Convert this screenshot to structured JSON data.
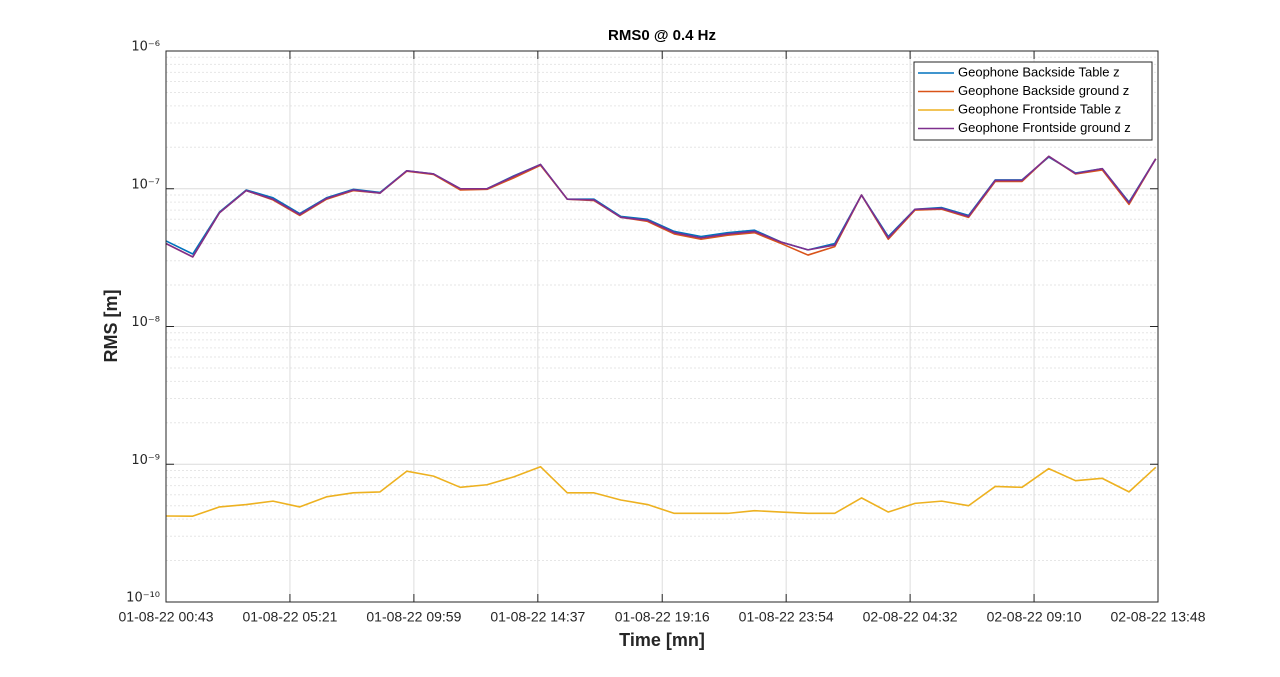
{
  "chart_data": {
    "type": "line",
    "title": "RMS0 @ 0.4 Hz",
    "x_label": "Time [mn]",
    "y_label": "RMS [m]",
    "log_y": true,
    "grid": true,
    "minor_grid": true,
    "legend_position": "top-right",
    "x": [
      "01-08-22 00:43",
      "01-08-22 01:43",
      "01-08-22 02:43",
      "01-08-22 03:43",
      "01-08-22 04:43",
      "01-08-22 05:43",
      "01-08-22 06:43",
      "01-08-22 07:43",
      "01-08-22 08:43",
      "01-08-22 09:43",
      "01-08-22 10:43",
      "01-08-22 11:43",
      "01-08-22 12:43",
      "01-08-22 13:43",
      "01-08-22 14:43",
      "01-08-22 15:43",
      "01-08-22 16:43",
      "01-08-22 17:43",
      "01-08-22 18:43",
      "01-08-22 19:43",
      "01-08-22 20:43",
      "01-08-22 21:43",
      "01-08-22 22:43",
      "01-08-22 23:43",
      "02-08-22 00:43",
      "02-08-22 01:43",
      "02-08-22 02:43",
      "02-08-22 03:43",
      "02-08-22 04:43",
      "02-08-22 05:43",
      "02-08-22 06:43",
      "02-08-22 07:43",
      "02-08-22 08:43",
      "02-08-22 09:43",
      "02-08-22 10:43",
      "02-08-22 11:43",
      "02-08-22 12:43",
      "02-08-22 13:43"
    ],
    "xlim": [
      "01-08-22 00:43",
      "02-08-22 13:48"
    ],
    "xticks": [
      "01-08-22 00:43",
      "01-08-22 05:21",
      "01-08-22 09:59",
      "01-08-22 14:37",
      "01-08-22 19:16",
      "01-08-22 23:54",
      "02-08-22 04:32",
      "02-08-22 09:10",
      "02-08-22 13:48"
    ],
    "ylim": [
      1e-10,
      1e-06
    ],
    "yticks": [
      {
        "value": 1e-10,
        "label": "10⁻¹⁰"
      },
      {
        "value": 1e-09,
        "label": "10⁻⁹"
      },
      {
        "value": 1e-08,
        "label": "10⁻⁸"
      },
      {
        "value": 1e-07,
        "label": "10⁻⁷"
      },
      {
        "value": 1e-06,
        "label": "10⁻⁶"
      }
    ],
    "series": [
      {
        "name": "Geophone Backside Table z",
        "color": "#0072BD",
        "values": [
          4.18e-08,
          3.36e-08,
          6.78e-08,
          9.8e-08,
          8.6e-08,
          6.6e-08,
          8.6e-08,
          9.9e-08,
          9.4e-08,
          1.35e-07,
          1.28e-07,
          1e-07,
          1e-07,
          1.24e-07,
          1.5e-07,
          8.4e-08,
          8.4e-08,
          6.3e-08,
          6e-08,
          4.9e-08,
          4.5e-08,
          4.8e-08,
          5e-08,
          4.1e-08,
          3.6e-08,
          4e-08,
          9e-08,
          4.5e-08,
          7.1e-08,
          7.3e-08,
          6.4e-08,
          1.16e-07,
          1.16e-07,
          1.7e-07,
          1.3e-07,
          1.4e-07,
          8e-08,
          1.65e-07
        ]
      },
      {
        "name": "Geophone Backside ground z",
        "color": "#D95319",
        "values": [
          4e-08,
          3.2e-08,
          6.7e-08,
          9.7e-08,
          8.3e-08,
          6.4e-08,
          8.4e-08,
          9.7e-08,
          9.3e-08,
          1.34e-07,
          1.27e-07,
          9.8e-08,
          9.9e-08,
          1.2e-07,
          1.48e-07,
          8.4e-08,
          8.2e-08,
          6.2e-08,
          5.8e-08,
          4.7e-08,
          4.3e-08,
          4.6e-08,
          4.8e-08,
          4e-08,
          3.3e-08,
          3.8e-08,
          9e-08,
          4.3e-08,
          7e-08,
          7.1e-08,
          6.2e-08,
          1.13e-07,
          1.13e-07,
          1.72e-07,
          1.28e-07,
          1.37e-07,
          7.7e-08,
          1.65e-07
        ]
      },
      {
        "name": "Geophone Frontside Table z",
        "color": "#EDB120",
        "values": [
          4.21e-10,
          4.2e-10,
          4.9e-10,
          5.1e-10,
          5.4e-10,
          4.9e-10,
          5.8e-10,
          6.2e-10,
          6.3e-10,
          8.9e-10,
          8.2e-10,
          6.8e-10,
          7.1e-10,
          8.1e-10,
          9.6e-10,
          6.2e-10,
          6.2e-10,
          5.5e-10,
          5.1e-10,
          4.4e-10,
          4.4e-10,
          4.4e-10,
          4.6e-10,
          4.5e-10,
          4.4e-10,
          4.4e-10,
          5.7e-10,
          4.5e-10,
          5.2e-10,
          5.4e-10,
          5e-10,
          6.9e-10,
          6.8e-10,
          9.3e-10,
          7.6e-10,
          7.9e-10,
          6.3e-10,
          9.5e-10
        ]
      },
      {
        "name": "Geophone Frontside ground z",
        "color": "#7E2F8E",
        "values": [
          4e-08,
          3.2e-08,
          6.7e-08,
          9.7e-08,
          8.4e-08,
          6.5e-08,
          8.5e-08,
          9.8e-08,
          9.3e-08,
          1.35e-07,
          1.28e-07,
          1e-07,
          1e-07,
          1.23e-07,
          1.5e-07,
          8.4e-08,
          8.3e-08,
          6.2e-08,
          5.9e-08,
          4.8e-08,
          4.4e-08,
          4.7e-08,
          4.9e-08,
          4.1e-08,
          3.6e-08,
          3.9e-08,
          9e-08,
          4.4e-08,
          7.1e-08,
          7.2e-08,
          6.3e-08,
          1.15e-07,
          1.15e-07,
          1.72e-07,
          1.29e-07,
          1.4e-07,
          7.9e-08,
          1.65e-07
        ]
      }
    ]
  }
}
